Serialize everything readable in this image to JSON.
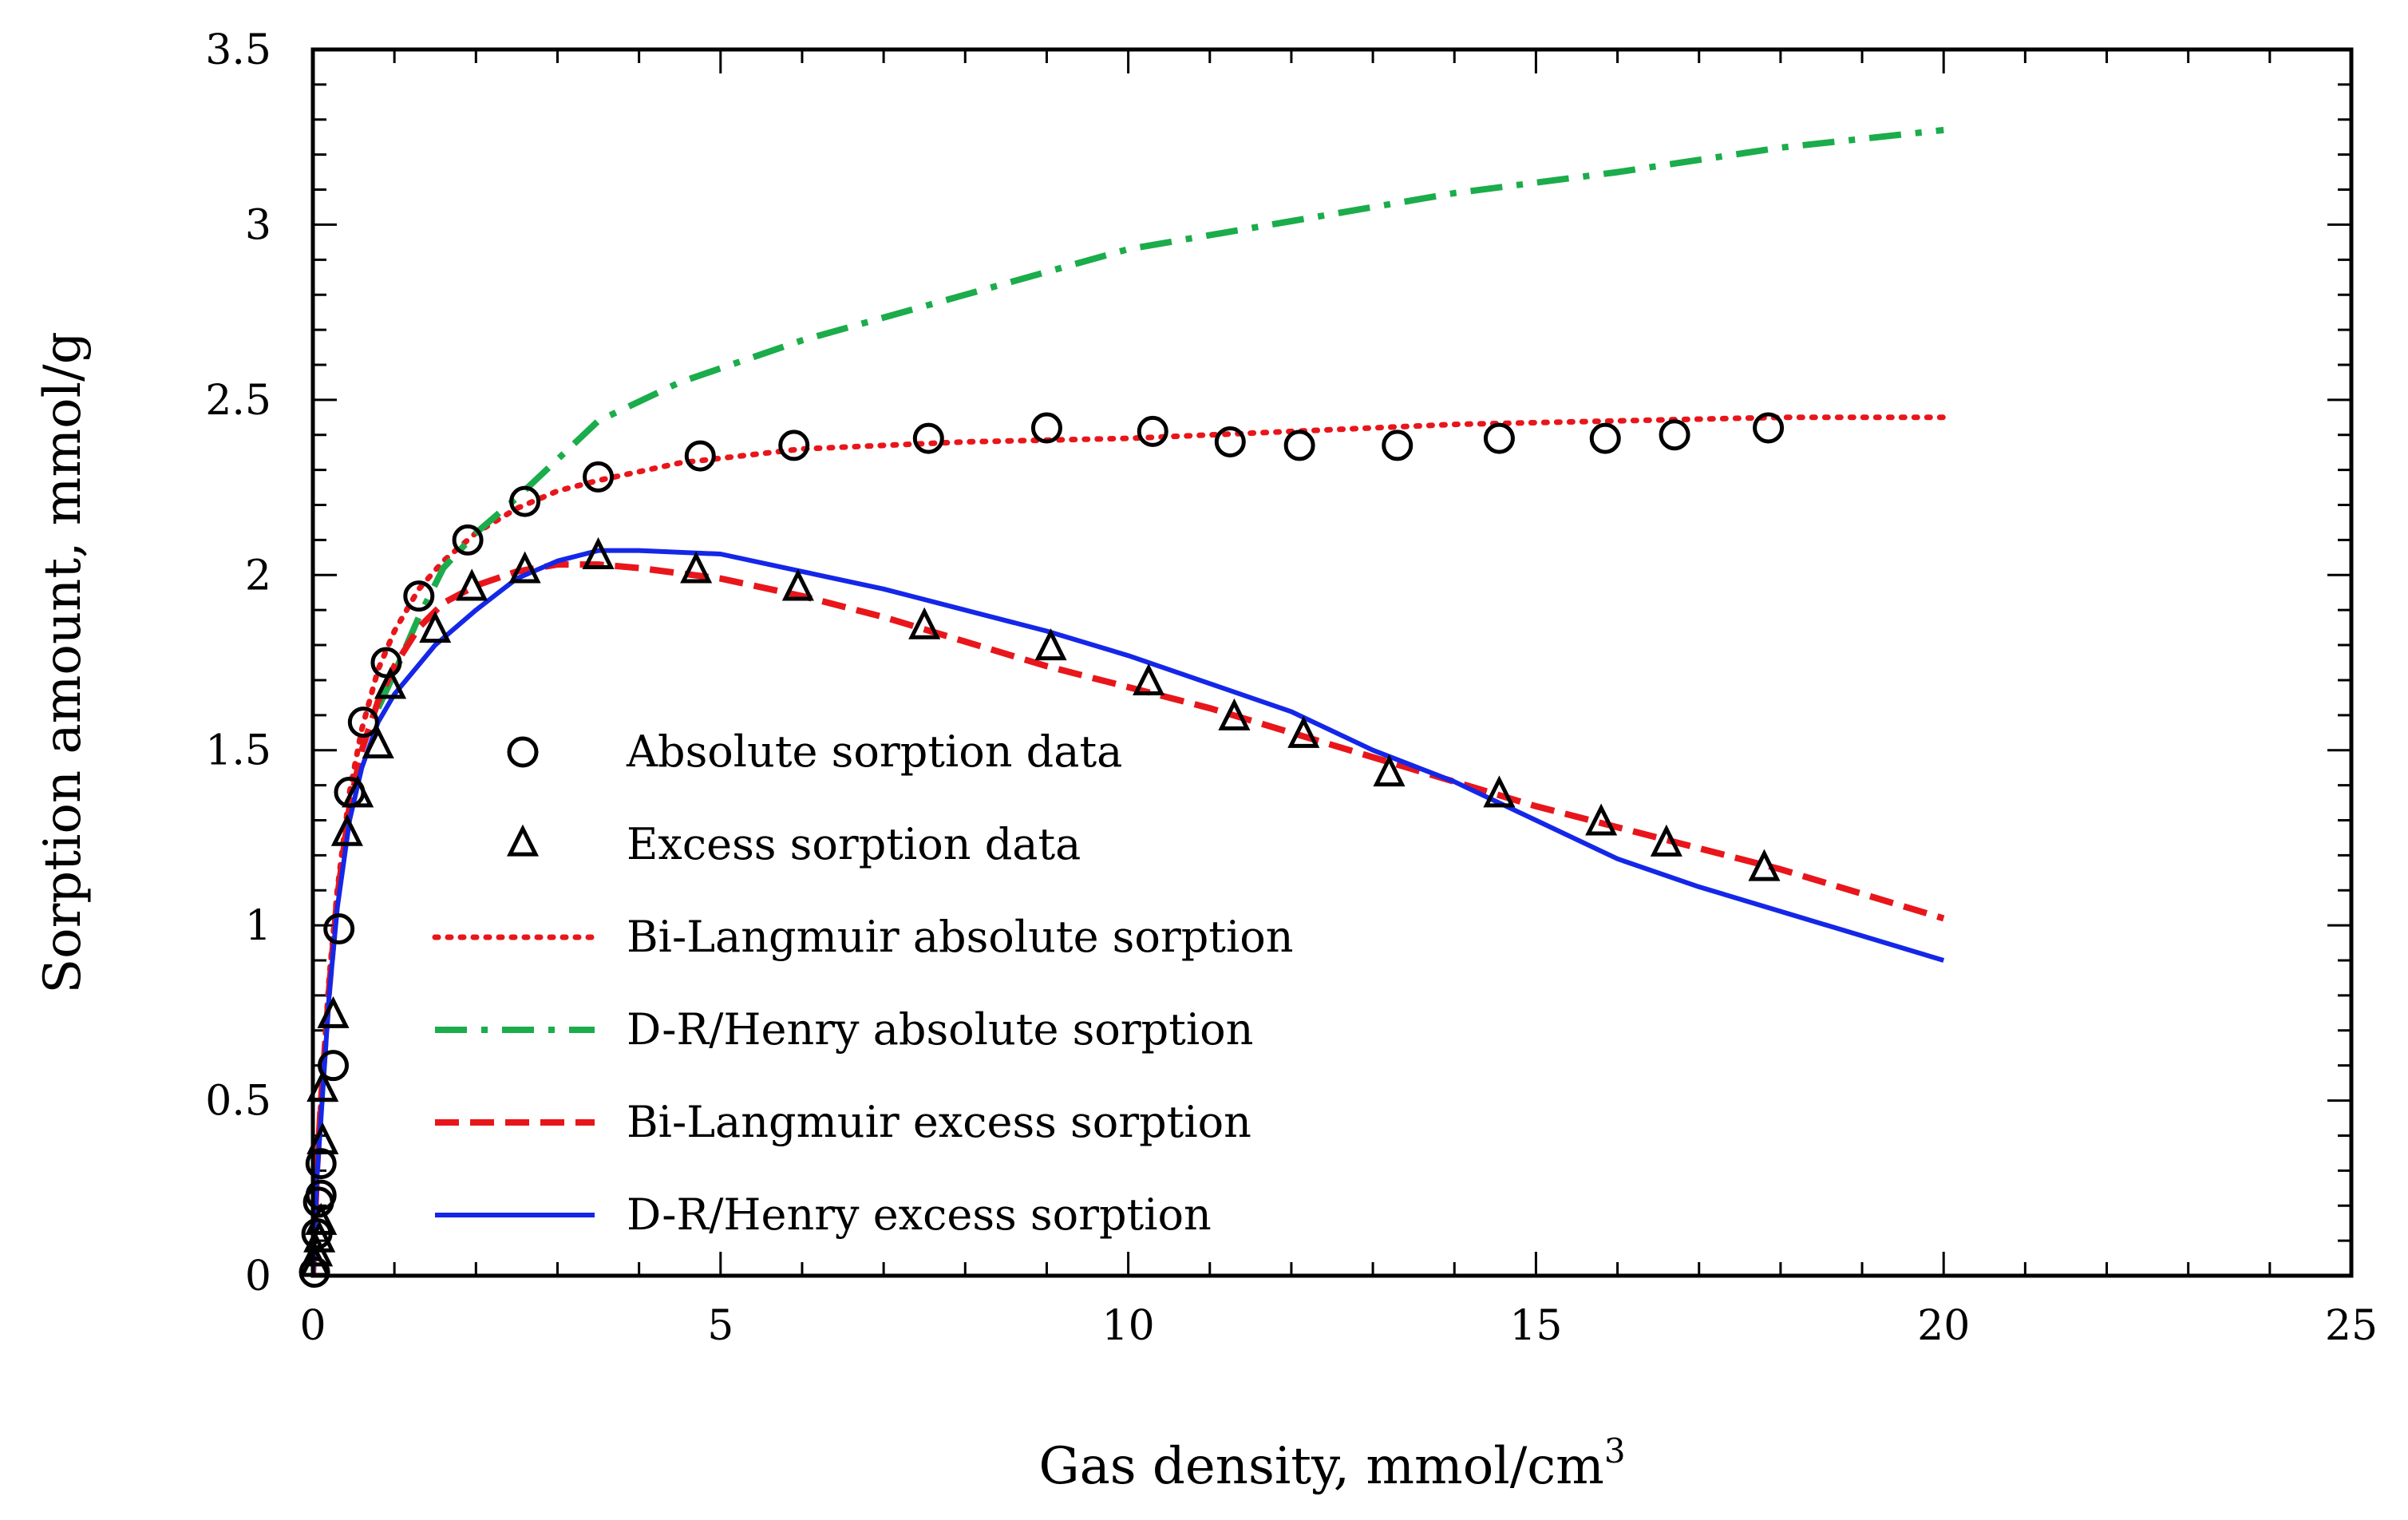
{
  "chart_data": {
    "type": "scatter",
    "title": "",
    "xlabel": "Gas density, mmol/cm",
    "xlabel_superscript": "3",
    "ylabel": "Sorption amount, mmol/g",
    "xlim": [
      0,
      25
    ],
    "ylim": [
      0,
      3.5
    ],
    "grid": false,
    "legend_position": "center",
    "x_ticks": [
      0,
      5,
      10,
      15,
      20,
      25
    ],
    "x_tick_labels": [
      "0",
      "5",
      "10",
      "15",
      "20",
      "25"
    ],
    "y_ticks": [
      0,
      0.5,
      1,
      1.5,
      2,
      2.5,
      3,
      3.5
    ],
    "y_tick_labels": [
      "0",
      "0.5",
      "1",
      "1.5",
      "2",
      "2.5",
      "3",
      "3.5"
    ],
    "series": [
      {
        "name": "Absolute sorption data",
        "kind": "markers",
        "marker": "circle",
        "color": "#000000",
        "x": [
          0.02,
          0.05,
          0.07,
          0.1,
          0.1,
          0.25,
          0.32,
          0.45,
          0.62,
          0.9,
          1.3,
          1.9,
          2.6,
          3.5,
          4.75,
          5.9,
          7.55,
          9.0,
          10.3,
          11.25,
          12.1,
          13.3,
          14.55,
          15.85,
          16.7,
          17.85
        ],
        "y": [
          0.01,
          0.12,
          0.21,
          0.23,
          0.32,
          0.6,
          0.99,
          1.38,
          1.58,
          1.75,
          1.94,
          2.1,
          2.21,
          2.28,
          2.34,
          2.37,
          2.39,
          2.42,
          2.41,
          2.38,
          2.37,
          2.37,
          2.39,
          2.39,
          2.4,
          2.42
        ]
      },
      {
        "name": "Excess sorption data",
        "kind": "markers",
        "marker": "triangle",
        "color": "#000000",
        "x": [
          0.03,
          0.05,
          0.08,
          0.1,
          0.12,
          0.12,
          0.25,
          0.42,
          0.55,
          0.8,
          0.95,
          1.5,
          1.95,
          2.6,
          3.5,
          4.7,
          5.95,
          7.5,
          9.05,
          10.25,
          11.3,
          12.15,
          13.2,
          14.55,
          15.8,
          16.6,
          17.8
        ],
        "y": [
          0.03,
          0.06,
          0.1,
          0.15,
          0.38,
          0.53,
          0.74,
          1.26,
          1.37,
          1.51,
          1.68,
          1.84,
          1.96,
          2.01,
          2.05,
          2.01,
          1.96,
          1.85,
          1.79,
          1.69,
          1.59,
          1.54,
          1.43,
          1.37,
          1.29,
          1.23,
          1.16
        ]
      },
      {
        "name": "Bi-Langmuir absolute sorption",
        "kind": "line",
        "line_style": "dotted",
        "color": "#e8161b",
        "x": [
          0,
          0.05,
          0.1,
          0.2,
          0.3,
          0.45,
          0.6,
          0.8,
          1.0,
          1.3,
          1.6,
          2.0,
          2.5,
          3.0,
          3.5,
          4.5,
          6,
          8,
          10,
          12,
          14,
          16,
          18,
          20
        ],
        "y": [
          0,
          0.3,
          0.5,
          0.85,
          1.1,
          1.38,
          1.56,
          1.73,
          1.84,
          1.96,
          2.04,
          2.12,
          2.19,
          2.24,
          2.27,
          2.32,
          2.36,
          2.38,
          2.39,
          2.41,
          2.43,
          2.44,
          2.45,
          2.45
        ]
      },
      {
        "name": "D-R/Henry absolute sorption",
        "kind": "line",
        "line_style": "dashdot",
        "color": "#1bac4b",
        "x": [
          0.8,
          1.0,
          1.3,
          1.6,
          2.0,
          2.5,
          3.0,
          3.5,
          4.5,
          6,
          8,
          10,
          12,
          14,
          16,
          18,
          20
        ],
        "y": [
          1.62,
          1.72,
          1.88,
          2.02,
          2.12,
          2.22,
          2.33,
          2.44,
          2.55,
          2.67,
          2.8,
          2.93,
          3.01,
          3.09,
          3.15,
          3.22,
          3.27
        ]
      },
      {
        "name": "Bi-Langmuir excess sorption",
        "kind": "line",
        "line_style": "dashed",
        "color": "#e8161b",
        "x": [
          0,
          0.05,
          0.1,
          0.2,
          0.3,
          0.45,
          0.6,
          0.8,
          1.0,
          1.3,
          1.6,
          2.0,
          2.5,
          3.0,
          3.5,
          4.0,
          5,
          6,
          7,
          8,
          9,
          10,
          11,
          12,
          13,
          14,
          15,
          16,
          17,
          18,
          19,
          20
        ],
        "y": [
          0,
          0.3,
          0.5,
          0.82,
          1.08,
          1.34,
          1.5,
          1.64,
          1.74,
          1.85,
          1.92,
          1.97,
          2.01,
          2.03,
          2.03,
          2.02,
          1.99,
          1.94,
          1.88,
          1.81,
          1.74,
          1.68,
          1.62,
          1.55,
          1.48,
          1.41,
          1.34,
          1.28,
          1.22,
          1.16,
          1.09,
          1.02
        ]
      },
      {
        "name": "D-R/Henry excess sorption",
        "kind": "line",
        "line_style": "solid",
        "color": "#1427e8",
        "x": [
          0,
          0.05,
          0.1,
          0.2,
          0.3,
          0.45,
          0.6,
          0.8,
          1.0,
          1.5,
          2.0,
          2.5,
          3.0,
          3.5,
          4.0,
          5,
          6,
          7,
          8,
          9,
          10,
          11,
          12,
          13,
          14,
          15,
          16,
          17,
          18,
          19,
          20
        ],
        "y": [
          0,
          0.28,
          0.45,
          0.8,
          1.05,
          1.3,
          1.45,
          1.58,
          1.66,
          1.8,
          1.9,
          1.99,
          2.04,
          2.07,
          2.07,
          2.06,
          2.01,
          1.96,
          1.9,
          1.84,
          1.77,
          1.69,
          1.61,
          1.5,
          1.41,
          1.3,
          1.19,
          1.11,
          1.04,
          0.97,
          0.9
        ]
      }
    ]
  }
}
